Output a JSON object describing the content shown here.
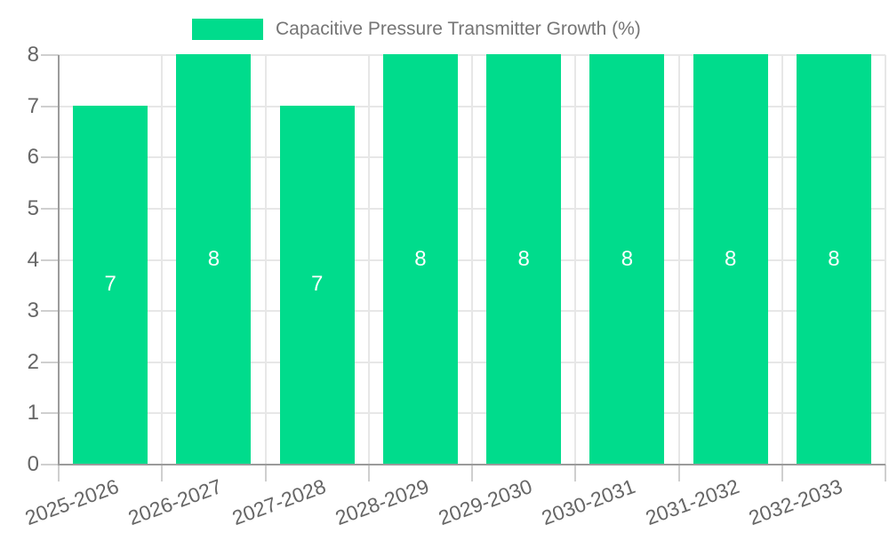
{
  "legend": {
    "items": [
      {
        "label": "Capacitive Pressure Transmitter Growth (%)",
        "color": "#00dc8c"
      }
    ]
  },
  "chart_data": {
    "type": "bar",
    "title": "Capacitive Pressure Transmitter Growth (%)",
    "categories": [
      "2025-2026",
      "2026-2027",
      "2027-2028",
      "2028-2029",
      "2029-2030",
      "2030-2031",
      "2031-2032",
      "2032-2033"
    ],
    "series": [
      {
        "name": "Capacitive Pressure Transmitter Growth (%)",
        "values": [
          7,
          8,
          7,
          8,
          8,
          8,
          8,
          8
        ]
      }
    ],
    "data_labels": [
      "7",
      "8",
      "7",
      "8",
      "8",
      "8",
      "8",
      "8"
    ],
    "xlabel": "",
    "ylabel": "",
    "ylim": [
      0,
      8
    ],
    "yticks": [
      0,
      1,
      2,
      3,
      4,
      5,
      6,
      7,
      8
    ],
    "grid": true,
    "legend_position": "top",
    "bar_color": "#00dc8c",
    "data_label_color": "#ffffff",
    "axis_line_color": "#9b9b9b",
    "tick_color": "#cfcfcf",
    "grid_color": "#e7e7e7",
    "axis_text_color": "#666666"
  }
}
